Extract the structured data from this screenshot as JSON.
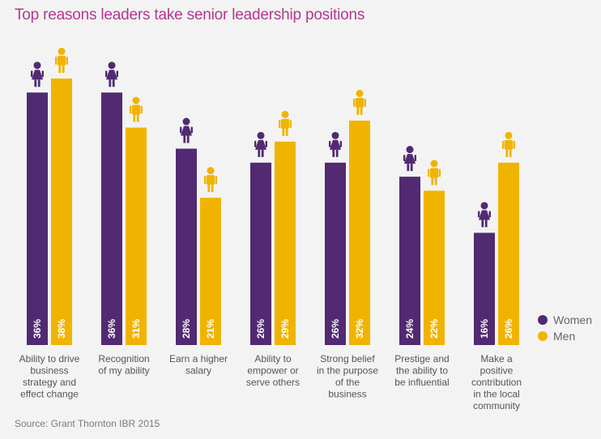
{
  "colors": {
    "women": "#512a72",
    "men": "#f0b400",
    "title": "#b5368f",
    "text": "#555555"
  },
  "legend": [
    {
      "name": "Women",
      "color": "#512a72"
    },
    {
      "name": "Men",
      "color": "#f0b400"
    }
  ],
  "source": "Source: Grant Thornton IBR 2015",
  "chart_data": {
    "type": "bar",
    "title": "Top reasons leaders take senior leadership positions",
    "categories": [
      [
        "Ability to drive",
        "business",
        "strategy and",
        "effect change"
      ],
      [
        "Recognition",
        "of my ability"
      ],
      [
        "Earn a higher",
        "salary"
      ],
      [
        "Ability to",
        "empower or",
        "serve others"
      ],
      [
        "Strong belief",
        "in the purpose",
        "of the",
        "business"
      ],
      [
        "Prestige and",
        "the ability to",
        "be influential"
      ],
      [
        "Make a",
        "positive",
        "contribution",
        "in the local",
        "community"
      ]
    ],
    "series": [
      {
        "name": "Women",
        "values": [
          36,
          36,
          28,
          26,
          26,
          24,
          16
        ]
      },
      {
        "name": "Men",
        "values": [
          38,
          31,
          21,
          29,
          32,
          22,
          26
        ]
      }
    ],
    "data_labels": [
      [
        "36%",
        "36%",
        "28%",
        "26%",
        "26%",
        "24%",
        "16%"
      ],
      [
        "38%",
        "31%",
        "21%",
        "29%",
        "32%",
        "22%",
        "26%"
      ]
    ],
    "ylim": [
      0,
      45
    ],
    "xlabel": "",
    "ylabel": ""
  }
}
